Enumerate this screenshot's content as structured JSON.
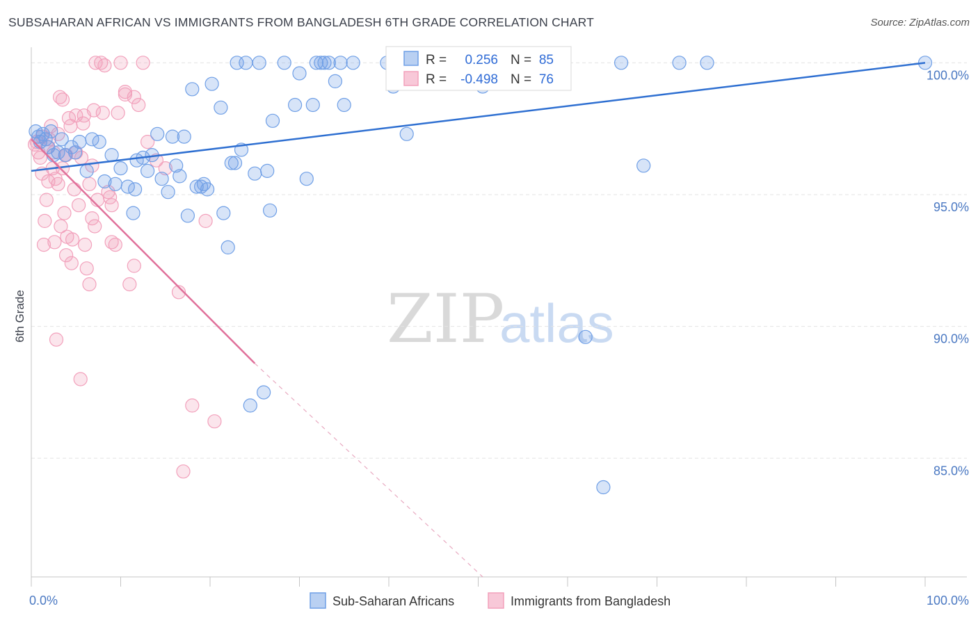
{
  "header": {
    "title": "SUBSAHARAN AFRICAN VS IMMIGRANTS FROM BANGLADESH 6TH GRADE CORRELATION CHART",
    "source": "Source: ZipAtlas.com"
  },
  "watermark": {
    "zip": "ZIP",
    "atlas": "atlas"
  },
  "colors": {
    "blue": "#6f9fe6",
    "blue_line": "#2e6fd1",
    "pink": "#f2a0bb",
    "pink_line": "#e0709a",
    "tick_text": "#4a78c2"
  },
  "stats": {
    "r_label": "R =",
    "n_label": "N =",
    "rows": [
      {
        "series": "blue",
        "r": "0.256",
        "n": "85"
      },
      {
        "series": "pink",
        "r": "-0.498",
        "n": "76"
      }
    ]
  },
  "chart_data": {
    "type": "scatter",
    "title": "SUBSAHARAN AFRICAN VS IMMIGRANTS FROM BANGLADESH 6TH GRADE CORRELATION CHART",
    "xlabel": "",
    "ylabel": "6th Grade",
    "xlim": [
      0,
      100
    ],
    "ylim": [
      80.5,
      100.8
    ],
    "x_tick_labels": [
      {
        "value": 0,
        "label": "0.0%"
      },
      {
        "value": 100,
        "label": "100.0%"
      }
    ],
    "y_ticks": [
      {
        "value": 100,
        "label": "100.0%"
      },
      {
        "value": 95,
        "label": "95.0%"
      },
      {
        "value": 90,
        "label": "90.0%"
      },
      {
        "value": 85,
        "label": "85.0%"
      }
    ],
    "grid": true,
    "legend_position": "bottom-center",
    "series": [
      {
        "name": "Sub-Saharan Africans",
        "color": "#6f9fe6",
        "trend": {
          "x0": 0,
          "y0": 95.9,
          "x1": 100,
          "y1": 100.0
        },
        "points": [
          [
            0.5,
            97.4
          ],
          [
            0.8,
            97.2
          ],
          [
            1.0,
            97.0
          ],
          [
            1.3,
            97.3
          ],
          [
            1.6,
            97.1
          ],
          [
            1.9,
            96.8
          ],
          [
            2.2,
            97.4
          ],
          [
            2.5,
            96.5
          ],
          [
            3.0,
            96.6
          ],
          [
            3.4,
            97.1
          ],
          [
            3.8,
            96.5
          ],
          [
            4.5,
            96.8
          ],
          [
            4.9,
            96.6
          ],
          [
            5.4,
            97.0
          ],
          [
            6.2,
            95.9
          ],
          [
            6.8,
            97.1
          ],
          [
            7.6,
            97.0
          ],
          [
            8.2,
            95.5
          ],
          [
            9.0,
            96.5
          ],
          [
            9.4,
            95.4
          ],
          [
            10.0,
            96.0
          ],
          [
            10.8,
            95.3
          ],
          [
            11.4,
            94.3
          ],
          [
            11.6,
            95.2
          ],
          [
            11.8,
            96.3
          ],
          [
            12.5,
            96.4
          ],
          [
            13.0,
            95.9
          ],
          [
            13.5,
            96.5
          ],
          [
            14.1,
            97.3
          ],
          [
            14.6,
            95.6
          ],
          [
            15.3,
            95.1
          ],
          [
            15.8,
            97.2
          ],
          [
            16.2,
            96.1
          ],
          [
            16.6,
            95.7
          ],
          [
            17.1,
            97.2
          ],
          [
            17.5,
            94.2
          ],
          [
            18.0,
            99.0
          ],
          [
            18.5,
            95.3
          ],
          [
            19.0,
            95.3
          ],
          [
            19.3,
            95.4
          ],
          [
            19.7,
            95.2
          ],
          [
            20.2,
            99.2
          ],
          [
            21.2,
            98.3
          ],
          [
            21.5,
            94.3
          ],
          [
            22.0,
            93.0
          ],
          [
            22.4,
            96.2
          ],
          [
            22.8,
            96.2
          ],
          [
            23.0,
            100.0
          ],
          [
            23.5,
            96.7
          ],
          [
            24.0,
            100.0
          ],
          [
            24.5,
            87.0
          ],
          [
            25.0,
            95.8
          ],
          [
            25.5,
            100.0
          ],
          [
            26.0,
            87.5
          ],
          [
            26.4,
            95.9
          ],
          [
            26.7,
            94.4
          ],
          [
            27.0,
            97.8
          ],
          [
            28.3,
            100.0
          ],
          [
            29.5,
            98.4
          ],
          [
            30.0,
            99.6
          ],
          [
            30.8,
            95.6
          ],
          [
            31.5,
            98.4
          ],
          [
            31.9,
            100.0
          ],
          [
            32.4,
            100.0
          ],
          [
            32.8,
            100.0
          ],
          [
            33.3,
            100.0
          ],
          [
            34.0,
            99.3
          ],
          [
            34.6,
            100.0
          ],
          [
            35.0,
            98.4
          ],
          [
            36.0,
            100.0
          ],
          [
            39.8,
            100.0
          ],
          [
            40.5,
            99.1
          ],
          [
            41.3,
            100.0
          ],
          [
            42.0,
            97.3
          ],
          [
            46.5,
            100.0
          ],
          [
            50.5,
            99.1
          ],
          [
            52.0,
            100.0
          ],
          [
            59.0,
            100.0
          ],
          [
            62.0,
            89.6
          ],
          [
            64.0,
            83.9
          ],
          [
            66.0,
            100.0
          ],
          [
            68.5,
            96.1
          ],
          [
            72.5,
            100.0
          ],
          [
            75.6,
            100.0
          ],
          [
            100.0,
            100.0
          ]
        ]
      },
      {
        "name": "Immigrants from Bangladesh",
        "color": "#f2a0bb",
        "trend": {
          "x0": 0,
          "y0": 97.1,
          "x1": 25,
          "y1": 88.6
        },
        "trend_extension": {
          "x0": 25,
          "y0": 88.6,
          "x1": 50.5,
          "y1": 80.5
        },
        "points": [
          [
            0.4,
            96.9
          ],
          [
            0.6,
            97.0
          ],
          [
            0.8,
            96.6
          ],
          [
            1.0,
            96.4
          ],
          [
            1.2,
            95.8
          ],
          [
            1.5,
            94.0
          ],
          [
            1.7,
            94.8
          ],
          [
            1.9,
            95.5
          ],
          [
            2.2,
            97.6
          ],
          [
            2.4,
            96.0
          ],
          [
            2.6,
            93.2
          ],
          [
            2.8,
            89.5
          ],
          [
            3.0,
            95.4
          ],
          [
            3.3,
            93.8
          ],
          [
            3.5,
            98.6
          ],
          [
            3.7,
            94.3
          ],
          [
            3.9,
            96.5
          ],
          [
            4.2,
            97.9
          ],
          [
            4.5,
            92.4
          ],
          [
            4.8,
            95.2
          ],
          [
            5.0,
            96.6
          ],
          [
            5.3,
            94.6
          ],
          [
            5.6,
            96.4
          ],
          [
            5.9,
            98.0
          ],
          [
            6.2,
            92.2
          ],
          [
            6.5,
            91.6
          ],
          [
            6.8,
            96.1
          ],
          [
            7.1,
            93.8
          ],
          [
            7.4,
            94.8
          ],
          [
            7.8,
            100.0
          ],
          [
            8.2,
            99.9
          ],
          [
            8.6,
            95.1
          ],
          [
            9.0,
            94.6
          ],
          [
            9.4,
            93.1
          ],
          [
            10.0,
            100.0
          ],
          [
            10.5,
            98.8
          ],
          [
            11.0,
            91.6
          ],
          [
            11.5,
            92.3
          ],
          [
            12.0,
            98.4
          ],
          [
            13.0,
            97.0
          ],
          [
            14.0,
            96.3
          ],
          [
            15.0,
            96.0
          ],
          [
            16.5,
            91.3
          ],
          [
            17.0,
            84.5
          ],
          [
            18.0,
            87.0
          ],
          [
            19.5,
            94.0
          ],
          [
            20.5,
            86.4
          ],
          [
            3.5,
            96.0
          ],
          [
            4.0,
            93.4
          ],
          [
            5.0,
            98.0
          ],
          [
            6.5,
            95.4
          ],
          [
            7.0,
            98.2
          ],
          [
            8.0,
            98.1
          ],
          [
            2.0,
            97.1
          ],
          [
            3.0,
            97.3
          ],
          [
            4.4,
            97.6
          ],
          [
            1.2,
            97.2
          ],
          [
            1.8,
            96.8
          ],
          [
            2.5,
            96.6
          ],
          [
            3.8,
            96.5
          ],
          [
            5.5,
            88.0
          ],
          [
            6.0,
            93.1
          ],
          [
            9.0,
            93.2
          ],
          [
            1.4,
            93.1
          ],
          [
            4.6,
            93.3
          ],
          [
            10.5,
            98.9
          ],
          [
            11.5,
            98.7
          ],
          [
            12.5,
            100.0
          ],
          [
            7.2,
            100.0
          ],
          [
            3.2,
            98.7
          ],
          [
            8.8,
            94.9
          ],
          [
            2.7,
            95.6
          ],
          [
            6.8,
            94.1
          ],
          [
            3.9,
            92.7
          ],
          [
            5.8,
            97.7
          ],
          [
            9.7,
            98.1
          ]
        ]
      }
    ]
  }
}
